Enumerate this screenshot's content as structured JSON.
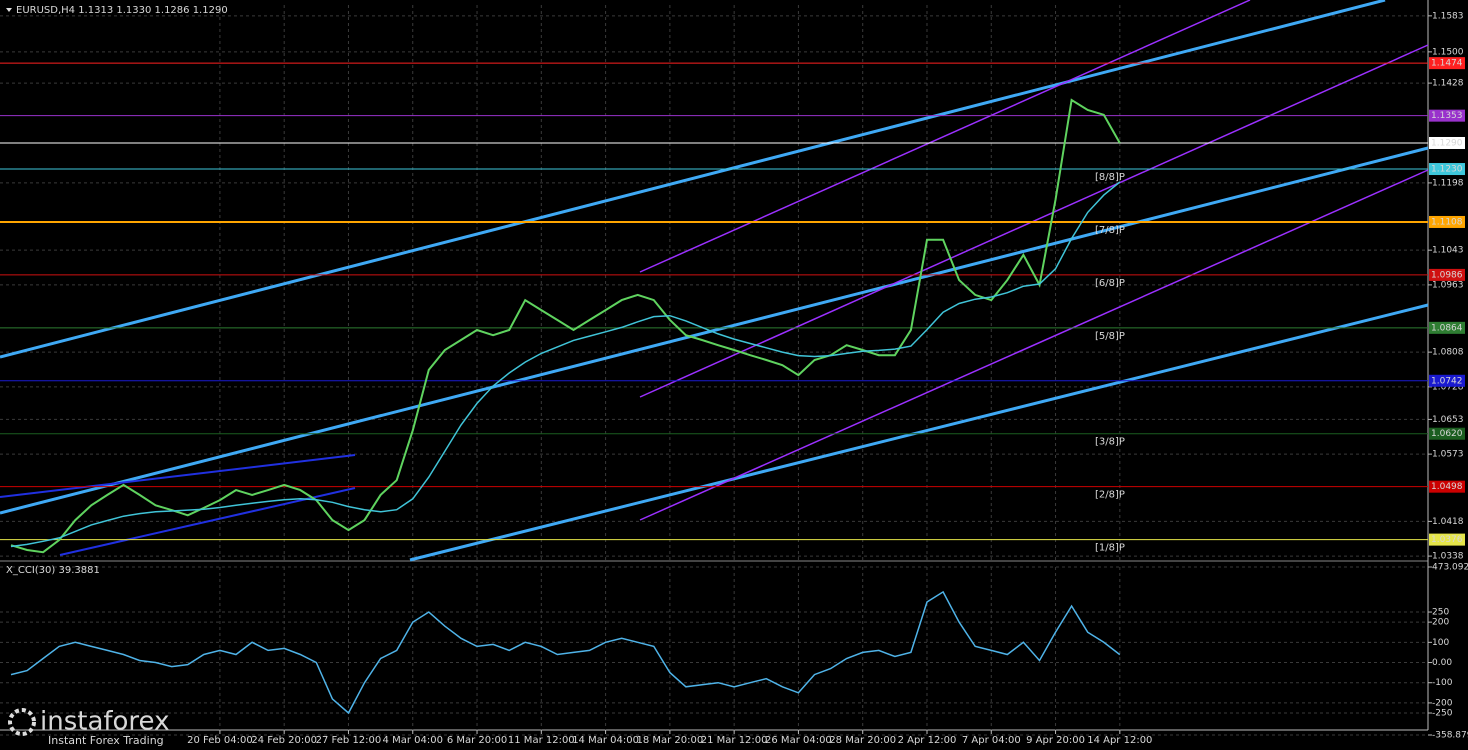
{
  "chart_data": [
    {
      "type": "line",
      "title": "EURUSD,H4  1.1313 1.1330 1.1286 1.1290",
      "categories": [
        null,
        null,
        null,
        null,
        null,
        null,
        null,
        null,
        null,
        null,
        null,
        null,
        null,
        "20 Feb 04:00",
        null,
        null,
        null,
        "24 Feb 20:00",
        null,
        null,
        null,
        "27 Feb 12:00",
        null,
        null,
        null,
        "4 Mar 04:00",
        null,
        null,
        null,
        "6 Mar 20:00",
        null,
        null,
        null,
        "11 Mar 12:00",
        null,
        null,
        null,
        "14 Mar 04:00",
        null,
        null,
        null,
        "18 Mar 20:00",
        null,
        null,
        null,
        "21 Mar 12:00",
        null,
        null,
        null,
        "26 Mar 04:00",
        null,
        null,
        null,
        "28 Mar 20:00",
        null,
        null,
        null,
        "2 Apr 12:00",
        null,
        null,
        null,
        "7 Apr 04:00",
        null,
        null,
        null,
        "9 Apr 20:00",
        null,
        null,
        null,
        "14 Apr 12:00"
      ],
      "series": [
        {
          "color": "#5fd35f",
          "values": [
            1.0363,
            1.0352,
            1.0347,
            1.0375,
            1.0421,
            1.0455,
            1.0479,
            1.0502,
            1.0479,
            1.0455,
            1.0444,
            1.0432,
            1.0449,
            1.0467,
            1.049,
            1.0479,
            1.049,
            1.0502,
            1.049,
            1.0467,
            1.0421,
            1.0398,
            1.0421,
            1.0479,
            1.0513,
            1.0628,
            1.0767,
            1.0813,
            1.0836,
            1.0859,
            1.0847,
            1.0859,
            1.0928,
            1.0905,
            1.0882,
            1.0859,
            1.0882,
            1.0905,
            1.0928,
            1.094,
            1.0928,
            1.0882,
            1.0847,
            1.0836,
            1.0824,
            1.0813,
            1.0801,
            1.079,
            1.0778,
            1.0755,
            1.079,
            1.0801,
            1.0824,
            1.0813,
            1.0801,
            1.0801,
            1.0859,
            1.1067,
            1.1067,
            1.0974,
            1.094,
            1.0928,
            1.0974,
            1.1032,
            1.0963,
            1.1159,
            1.1389,
            1.1366,
            1.1355,
            1.129
          ]
        },
        {
          "color": "#40c4d8",
          "values": [
            1.036,
            1.0365,
            1.0372,
            1.038,
            1.0395,
            1.041,
            1.042,
            1.043,
            1.0436,
            1.044,
            1.0442,
            1.0444,
            1.0446,
            1.045,
            1.0455,
            1.046,
            1.0464,
            1.0468,
            1.047,
            1.0468,
            1.0462,
            1.0452,
            1.0445,
            1.044,
            1.0445,
            1.047,
            1.052,
            1.058,
            1.064,
            1.069,
            1.073,
            1.076,
            1.0785,
            1.0805,
            1.082,
            1.0835,
            1.0845,
            1.0855,
            1.0865,
            1.0878,
            1.089,
            1.0892,
            1.088,
            1.0865,
            1.085,
            1.0838,
            1.0828,
            1.0818,
            1.0808,
            1.08,
            1.0798,
            1.08,
            1.0805,
            1.081,
            1.0812,
            1.0815,
            1.0822,
            1.086,
            1.09,
            1.092,
            1.093,
            1.0935,
            1.0945,
            1.096,
            1.0965,
            1.1,
            1.107,
            1.113,
            1.117,
            1.12
          ]
        }
      ],
      "ylim": [
        1.0329,
        1.1608
      ],
      "yticks": [
        1.1583,
        {
          "value": 1.15,
          "label": "1.1500"
        },
        1.1428,
        1.1198,
        1.1043,
        1.0963,
        1.0808,
        1.0728,
        1.0653,
        1.0573,
        1.0418,
        1.0338
      ],
      "grid": true,
      "levels": [
        {
          "value": 1.1474,
          "color": "#ff2020"
        },
        {
          "value": 1.1353,
          "color": "#9932cc"
        },
        {
          "value": 1.129,
          "label": "1.1290",
          "color": "#ffffff"
        },
        {
          "value": 1.123,
          "label": "1.1230",
          "color": "#3ec8dc",
          "tag": "[8/8]P"
        },
        {
          "value": 1.1108,
          "color": "#ffa500",
          "tag": "[7/8]P"
        },
        {
          "value": 1.0986,
          "color": "#d01010",
          "tag": "[6/8]P"
        },
        {
          "value": 1.0864,
          "color": "#2e7d32",
          "tag": "[5/8]P"
        },
        {
          "value": 1.0742,
          "color": "#1a1ad0"
        },
        {
          "value": 1.062,
          "label": "1.0620",
          "color": "#1b5e20",
          "tag": "[3/8]P"
        },
        {
          "value": 1.0498,
          "color": "#cc0000",
          "tag": "[2/8]P"
        },
        {
          "value": 1.0376,
          "color": "#e6e64a",
          "tag": "[1/8]P"
        }
      ]
    },
    {
      "type": "line",
      "title": "X_CCI(30) 39.3881",
      "series": [
        {
          "color": "#4fb3e8",
          "values": [
            -60,
            -40,
            20,
            80,
            100,
            80,
            60,
            40,
            10,
            0,
            -20,
            -10,
            40,
            60,
            40,
            100,
            60,
            70,
            40,
            0,
            -180,
            -250,
            -100,
            20,
            60,
            200,
            250,
            180,
            120,
            80,
            90,
            60,
            100,
            80,
            40,
            50,
            60,
            100,
            120,
            100,
            80,
            -50,
            -120,
            -110,
            -100,
            -120,
            -100,
            -80,
            -120,
            -150,
            -60,
            -30,
            20,
            50,
            60,
            30,
            50,
            300,
            350,
            200,
            80,
            60,
            40,
            100,
            10,
            150,
            280,
            150,
            100,
            39.3881
          ]
        }
      ],
      "ylim": [
        -358.879,
        473.0924
      ],
      "yticks": [
        473.0924,
        250,
        200,
        100,
        {
          "value": 0,
          "label": "0.00"
        },
        -100,
        -200,
        -250,
        -358.879
      ],
      "grid": true
    }
  ],
  "watermark": {
    "brand": "instaforex",
    "tagline": "Instant Forex Trading"
  }
}
